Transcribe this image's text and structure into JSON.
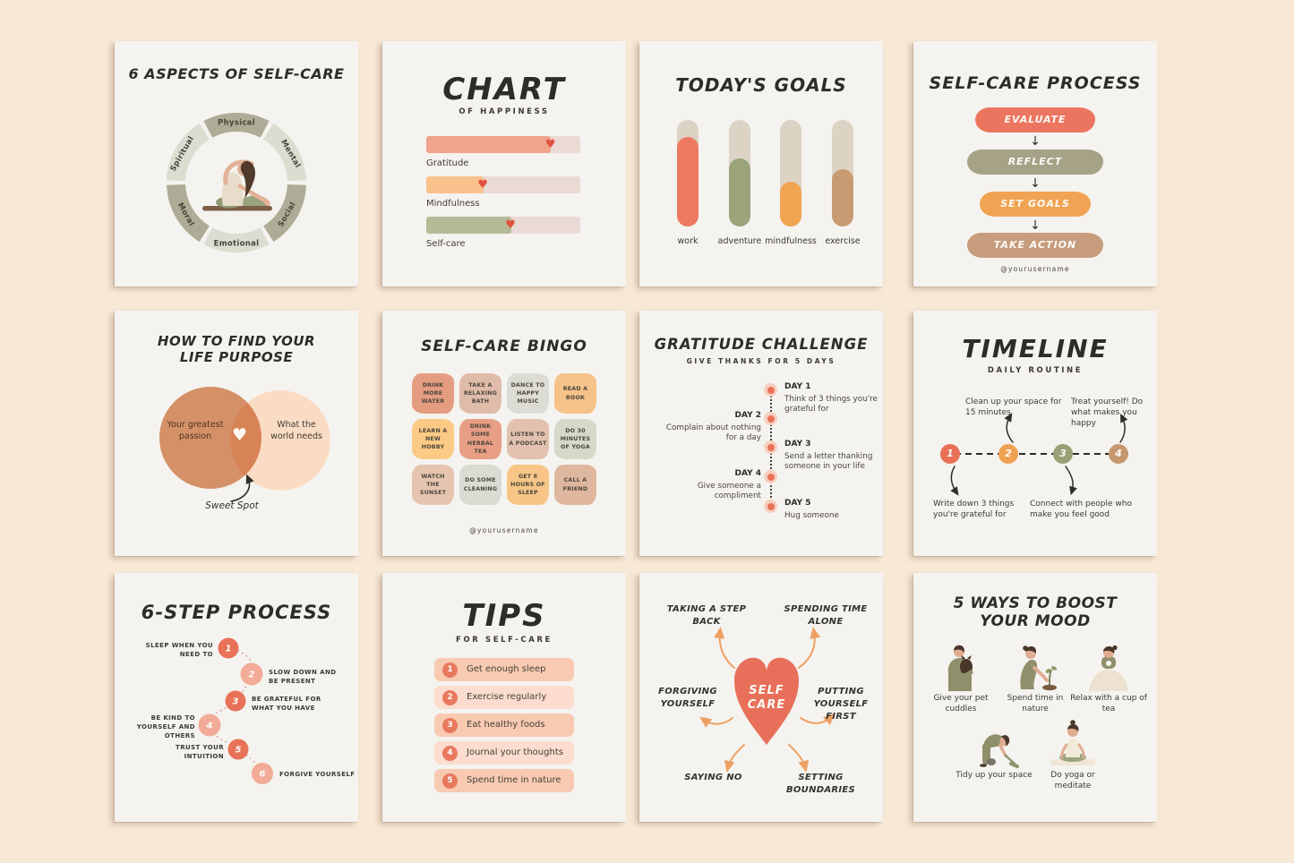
{
  "palette": {
    "background": "#f8e9d7",
    "card": "#f5f3ef",
    "ink": "#2e2c27",
    "coral": "#e8745b",
    "heart_red": "#e0543f",
    "arrow_orange": "#eda064"
  },
  "glyphs": {
    "heart": "♥",
    "arrow_down": "↓"
  },
  "cards": {
    "aspects": {
      "title": "6 ASPECTS OF SELF-CARE",
      "center_illustration": "woman-stretching-on-yoga-mat",
      "segments": [
        {
          "label": "Physical",
          "color": "#adad97"
        },
        {
          "label": "Mental",
          "color": "#dcdcd0"
        },
        {
          "label": "Social",
          "color": "#adad97"
        },
        {
          "label": "Emotional",
          "color": "#dcdcd0"
        },
        {
          "label": "Moral",
          "color": "#adad97"
        },
        {
          "label": "Spiritual",
          "color": "#dcdcd0"
        }
      ]
    },
    "chart": {
      "title": "CHART",
      "subtitle": "OF HAPPINESS",
      "chart_data": {
        "type": "bar",
        "orientation": "horizontal",
        "categories": [
          "Gratitude",
          "Mindfulness",
          "Self-care"
        ],
        "values": [
          81,
          37,
          55
        ],
        "unit": "percent of track filled",
        "colors": [
          "#efa48b",
          "#f9c28c",
          "#b5ba97"
        ],
        "track_color": "#ead9d4",
        "marker": "heart at end of each fill"
      }
    },
    "goals": {
      "title": "TODAY'S GOALS",
      "chart_data": {
        "type": "bar",
        "orientation": "vertical",
        "categories": [
          "work",
          "adventure",
          "mindfulness",
          "exercise"
        ],
        "values": [
          84,
          64,
          42,
          54
        ],
        "unit": "percent of track filled",
        "colors": [
          "#ee7961",
          "#9aa379",
          "#f0a452",
          "#c89b72"
        ],
        "track_color": "#ddd3c5"
      }
    },
    "process": {
      "title": "SELF-CARE PROCESS",
      "steps": [
        {
          "label": "EVALUATE",
          "color": "#ec7560"
        },
        {
          "label": "REFLECT",
          "color": "#a5a287"
        },
        {
          "label": "SET GOALS",
          "color": "#f0a352"
        },
        {
          "label": "TAKE ACTION",
          "color": "#c79d7d"
        }
      ],
      "footer": "@yourusername"
    },
    "purpose": {
      "title": "HOW TO FIND YOUR LIFE PURPOSE",
      "left_label": "Your greatest passion",
      "right_label": "What the world needs",
      "left_color": "#dc9266",
      "right_color": "#fadcc5",
      "callout": "Sweet Spot"
    },
    "bingo": {
      "title": "SELF-CARE BINGO",
      "tiles": [
        {
          "label": "DRINK MORE WATER",
          "color": "#e59d82"
        },
        {
          "label": "TAKE A RELAXING BATH",
          "color": "#dfbca9"
        },
        {
          "label": "DANCE TO HAPPY MUSIC",
          "color": "#dcdcd4"
        },
        {
          "label": "READ A BOOK",
          "color": "#f5c28a"
        },
        {
          "label": "LEARN A NEW HOBBY",
          "color": "#fbca85"
        },
        {
          "label": "DRINK SOME HERBAL TEA",
          "color": "#e89e84"
        },
        {
          "label": "LISTEN TO A PODCAST",
          "color": "#e2c1b0"
        },
        {
          "label": "DO 30 MINUTES OF YOGA",
          "color": "#d6d8ca"
        },
        {
          "label": "WATCH THE SUNSET",
          "color": "#e6c5b0"
        },
        {
          "label": "DO SOME CLEANING",
          "color": "#dadcd3"
        },
        {
          "label": "GET 8 HOURS OF SLEEP",
          "color": "#f7c687"
        },
        {
          "label": "CALL A FRIEND",
          "color": "#dfb69e"
        }
      ],
      "footer": "@yourusername"
    },
    "gratitude": {
      "title": "GRATITUDE CHALLENGE",
      "subtitle": "GIVE THANKS FOR 5 DAYS",
      "days": [
        {
          "label": "DAY 1",
          "text": "Think of 3 things you're grateful for",
          "side": "right"
        },
        {
          "label": "DAY 2",
          "text": "Complain about nothing for a day",
          "side": "left"
        },
        {
          "label": "DAY 3",
          "text": "Send a letter thanking someone in your life",
          "side": "right"
        },
        {
          "label": "DAY 4",
          "text": "Give someone a compliment",
          "side": "left"
        },
        {
          "label": "DAY 5",
          "text": "Hug someone",
          "side": "right"
        }
      ]
    },
    "timeline": {
      "title": "TIMELINE",
      "subtitle": "DAILY ROUTINE",
      "points": [
        {
          "num": "1",
          "color": "#e87056",
          "note": "Write down 3 things you're grateful for",
          "note_position": "below"
        },
        {
          "num": "2",
          "color": "#efa152",
          "note": "Clean up your space for 15 minutes",
          "note_position": "above"
        },
        {
          "num": "3",
          "color": "#97a077",
          "note": "Connect with people who make you feel good",
          "note_position": "below"
        },
        {
          "num": "4",
          "color": "#c6986f",
          "note": "Treat yourself! Do what makes you happy",
          "note_position": "above"
        }
      ]
    },
    "sixstep": {
      "title": "6-STEP PROCESS",
      "steps": [
        {
          "num": "1",
          "label": "SLEEP WHEN YOU NEED TO",
          "color": "#e87258",
          "side": "left"
        },
        {
          "num": "2",
          "label": "SLOW DOWN AND BE PRESENT",
          "color": "#f2ab97",
          "side": "right"
        },
        {
          "num": "3",
          "label": "BE GRATEFUL FOR WHAT YOU HAVE",
          "color": "#e87258",
          "side": "right"
        },
        {
          "num": "4",
          "label": "BE KIND TO YOURSELF AND OTHERS",
          "color": "#f2ab97",
          "side": "left"
        },
        {
          "num": "5",
          "label": "TRUST YOUR INTUITION",
          "color": "#e87258",
          "side": "left"
        },
        {
          "num": "6",
          "label": "FORGIVE YOURSELF",
          "color": "#f2ab97",
          "side": "right"
        }
      ]
    },
    "tips": {
      "title": "TIPS",
      "subtitle": "FOR SELF-CARE",
      "num_color": "#e8795e",
      "items": [
        {
          "num": "1",
          "label": "Get enough sleep",
          "color": "#f8cab1"
        },
        {
          "num": "2",
          "label": "Exercise regularly",
          "color": "#fbdcce"
        },
        {
          "num": "3",
          "label": "Eat healthy foods",
          "color": "#f8cab1"
        },
        {
          "num": "4",
          "label": "Journal your thoughts",
          "color": "#fbdcce"
        },
        {
          "num": "5",
          "label": "Spend time in nature",
          "color": "#f8cab1"
        }
      ]
    },
    "mindmap": {
      "center_line1": "SELF",
      "center_line2": "CARE",
      "heart_color": "#e8705a",
      "arrow_color": "#eda064",
      "branches": [
        "TAKING A STEP BACK",
        "SPENDING TIME ALONE",
        "FORGIVING YOURSELF",
        "PUTTING YOURSELF FIRST",
        "SAYING NO",
        "SETTING BOUNDARIES"
      ]
    },
    "mood": {
      "title": "5 WAYS TO BOOST YOUR MOOD",
      "items": [
        {
          "label": "Give your pet cuddles",
          "icon": "person-hugging-pet"
        },
        {
          "label": "Spend time in nature",
          "icon": "person-planting-seedling"
        },
        {
          "label": "Relax with a cup of tea",
          "icon": "person-wrapped-in-blanket-with-tea"
        },
        {
          "label": "Tidy up your space",
          "icon": "person-sweeping-floor"
        },
        {
          "label": "Do yoga or meditate",
          "icon": "person-meditating-on-mat"
        }
      ]
    }
  }
}
